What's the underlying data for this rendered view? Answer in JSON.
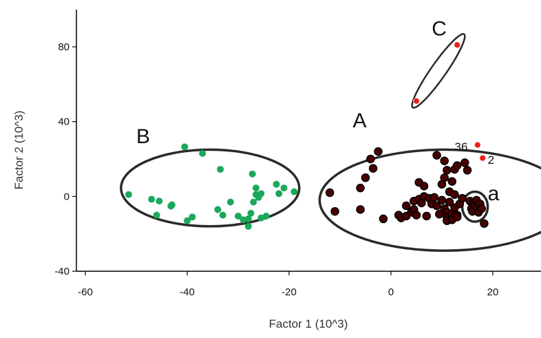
{
  "chart_data": {
    "type": "scatter",
    "xlabel": "Factor 1 (10^3)",
    "ylabel": "Factor 2 (10^3)",
    "xlim": [
      -60,
      30
    ],
    "ylim": [
      -40,
      100
    ],
    "x_ticks": [
      {
        "value": -60,
        "label": "-60"
      },
      {
        "value": -40,
        "label": "-40"
      },
      {
        "value": -20,
        "label": "-20"
      },
      {
        "value": 0,
        "label": "0"
      },
      {
        "value": 20,
        "label": "20"
      }
    ],
    "y_ticks": [
      {
        "value": -40,
        "label": "-40"
      },
      {
        "value": 0,
        "label": "0"
      },
      {
        "value": 40,
        "label": "40"
      },
      {
        "value": 80,
        "label": "80"
      }
    ],
    "grid": false,
    "legend": "none",
    "colors": {
      "group_B": "#1aa85a",
      "group_A_fill": "#6b0000",
      "group_A_outline": "#000000",
      "highlight": "#e8201c",
      "ellipse_stroke": "#2a2a2a"
    },
    "series": [
      {
        "group": "B",
        "color": "#1aa85a",
        "points": [
          [
            -51.5,
            1.0
          ],
          [
            -47,
            -1.5
          ],
          [
            -45.5,
            -2.5
          ],
          [
            -46,
            -10.0
          ],
          [
            -43,
            -4.5
          ],
          [
            -43.2,
            -5.2
          ],
          [
            -40.5,
            26.5
          ],
          [
            -40,
            -13.0
          ],
          [
            -39,
            -11.0
          ],
          [
            -37,
            23.0
          ],
          [
            -33.5,
            14.5
          ],
          [
            -34,
            -7.0
          ],
          [
            -33,
            -10.0
          ],
          [
            -31.5,
            -3.0
          ],
          [
            -30,
            -10.5
          ],
          [
            -29,
            -12.5
          ],
          [
            -28,
            -16.0
          ],
          [
            -28,
            -12.0
          ],
          [
            -27.5,
            -9.0
          ],
          [
            -27,
            -3.0
          ],
          [
            -27.2,
            12.0
          ],
          [
            -26.5,
            4.5
          ],
          [
            -26.5,
            1.0
          ],
          [
            -26,
            -0.5
          ],
          [
            -25.5,
            -11.5
          ],
          [
            -25.5,
            1.5
          ],
          [
            -24.5,
            -10.5
          ],
          [
            -22.5,
            6.5
          ],
          [
            -22,
            1.5
          ],
          [
            -21,
            4.5
          ],
          [
            -19,
            2.5
          ]
        ]
      },
      {
        "group": "A",
        "color": "#6b0000",
        "points": [
          [
            -12,
            2.0
          ],
          [
            -11,
            -8.0
          ],
          [
            -6,
            -7.0
          ],
          [
            -6,
            4.5
          ],
          [
            -5,
            10.0
          ],
          [
            -4,
            20.0
          ],
          [
            -3.5,
            15.0
          ],
          [
            -2.5,
            24.0
          ],
          [
            -1.5,
            -12.0
          ],
          [
            1.5,
            -10.0
          ],
          [
            2,
            -11.5
          ],
          [
            3,
            -5.0
          ],
          [
            3,
            -10.5
          ],
          [
            4,
            -8.5
          ],
          [
            4.5,
            -2.5
          ],
          [
            4.5,
            -7.0
          ],
          [
            5,
            -10.0
          ],
          [
            5.5,
            -1.5
          ],
          [
            5.5,
            7.5
          ],
          [
            6,
            -3.5
          ],
          [
            6.5,
            0.0
          ],
          [
            6.5,
            5.5
          ],
          [
            7,
            -10.5
          ],
          [
            7.5,
            -1.0
          ],
          [
            8,
            -4.0
          ],
          [
            8.5,
            -0.5
          ],
          [
            9,
            22.0
          ],
          [
            9,
            -5.0
          ],
          [
            9.5,
            -9.5
          ],
          [
            10,
            -2.0
          ],
          [
            10,
            6.5
          ],
          [
            10.5,
            -6.5
          ],
          [
            10.5,
            19.0
          ],
          [
            10.5,
            10.0
          ],
          [
            11,
            -8.5
          ],
          [
            11,
            -11.0
          ],
          [
            11,
            -13.0
          ],
          [
            11,
            14.0
          ],
          [
            11.5,
            2.5
          ],
          [
            11.5,
            -3.0
          ],
          [
            12,
            -9.5
          ],
          [
            12,
            -12.5
          ],
          [
            12,
            8.0
          ],
          [
            12.5,
            -6.0
          ],
          [
            12.5,
            1.0
          ],
          [
            12.5,
            14.5
          ],
          [
            13,
            -10.0
          ],
          [
            13,
            -11.0
          ],
          [
            13,
            16.5
          ],
          [
            13.5,
            -4.0
          ],
          [
            14,
            -1.0
          ],
          [
            14.5,
            18.0
          ],
          [
            15,
            14.0
          ]
        ]
      },
      {
        "group": "a",
        "color": "#6b0000",
        "points": [
          [
            15.5,
            -2.5
          ],
          [
            15.8,
            -6.5
          ],
          [
            16,
            -8.0
          ],
          [
            16.3,
            -3.5
          ],
          [
            16.5,
            -5.0
          ],
          [
            16.8,
            -2.0
          ],
          [
            17,
            -6.0
          ],
          [
            17.2,
            -8.5
          ],
          [
            17.5,
            -4.0
          ],
          [
            17.8,
            -6.5
          ],
          [
            18.3,
            -14.5
          ]
        ]
      },
      {
        "group": "C",
        "color": "#e8201c",
        "points": [
          [
            5,
            51.0
          ],
          [
            13,
            81.0
          ]
        ]
      },
      {
        "group": "highlight",
        "color": "#e8201c",
        "points": [
          [
            17,
            27.5
          ],
          [
            18,
            20.5
          ]
        ]
      }
    ],
    "ellipses": [
      {
        "label": "A",
        "cx": 10.5,
        "cy": -2.0,
        "rx": 24.5,
        "ry": 27.0,
        "angle": 0
      },
      {
        "label": "B",
        "cx": -35.5,
        "cy": 4.5,
        "rx": 17.5,
        "ry": 20.5,
        "angle": 0
      },
      {
        "label": "C",
        "cx": 9.0,
        "cy": 66.0,
        "rx": 13.0,
        "ry": 2.6,
        "angle": -55
      },
      {
        "label": "a",
        "cx": 16.5,
        "cy": -5.5,
        "rx": 2.5,
        "ry": 8.0,
        "angle": 0
      }
    ],
    "annotations": [
      {
        "text": "A",
        "x": -7.5,
        "y": 37.0,
        "style": "cluster"
      },
      {
        "text": "B",
        "x": -50.0,
        "y": 28.5,
        "style": "cluster"
      },
      {
        "text": "C",
        "x": 8.0,
        "y": 86.0,
        "style": "cluster"
      },
      {
        "text": "a",
        "x": 19.0,
        "y": -2.0,
        "style": "cluster"
      },
      {
        "text": "36",
        "x": 12.5,
        "y": 24.5,
        "style": "point"
      },
      {
        "text": "2",
        "x": 19.0,
        "y": 17.5,
        "style": "point"
      }
    ]
  }
}
